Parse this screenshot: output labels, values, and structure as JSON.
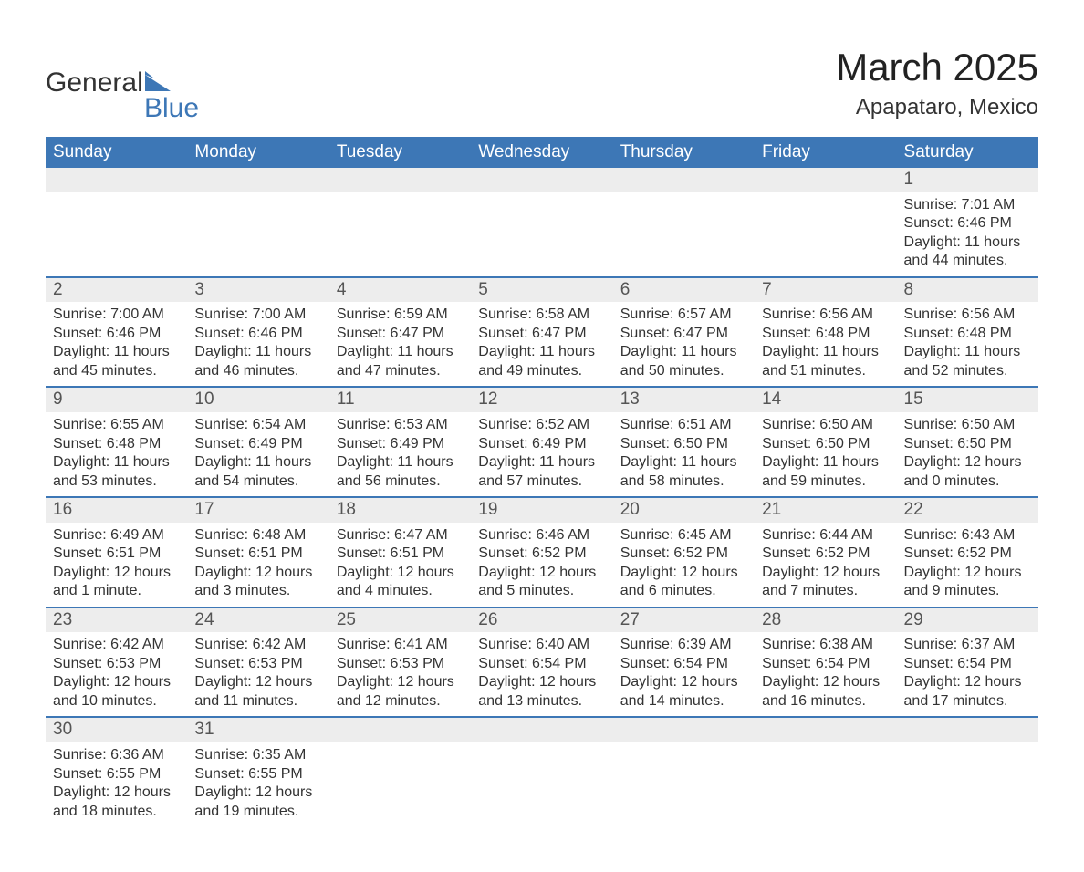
{
  "brand": {
    "name_part1": "General",
    "name_part2": "Blue",
    "text_color": "#333333",
    "accent_color": "#3d77b6"
  },
  "header": {
    "month_title": "March 2025",
    "location": "Apapataro, Mexico"
  },
  "calendar": {
    "header_bg": "#3d77b6",
    "header_text_color": "#ffffff",
    "row_divider_color": "#3d77b6",
    "daynum_bg": "#ededed",
    "daynum_color": "#555555",
    "body_text_color": "#333333",
    "font_size_header": 19,
    "font_size_body": 16,
    "weekdays": [
      "Sunday",
      "Monday",
      "Tuesday",
      "Wednesday",
      "Thursday",
      "Friday",
      "Saturday"
    ],
    "weeks": [
      [
        {
          "day": "",
          "sunrise": "",
          "sunset": "",
          "daylight": ""
        },
        {
          "day": "",
          "sunrise": "",
          "sunset": "",
          "daylight": ""
        },
        {
          "day": "",
          "sunrise": "",
          "sunset": "",
          "daylight": ""
        },
        {
          "day": "",
          "sunrise": "",
          "sunset": "",
          "daylight": ""
        },
        {
          "day": "",
          "sunrise": "",
          "sunset": "",
          "daylight": ""
        },
        {
          "day": "",
          "sunrise": "",
          "sunset": "",
          "daylight": ""
        },
        {
          "day": "1",
          "sunrise": "Sunrise: 7:01 AM",
          "sunset": "Sunset: 6:46 PM",
          "daylight": "Daylight: 11 hours and 44 minutes."
        }
      ],
      [
        {
          "day": "2",
          "sunrise": "Sunrise: 7:00 AM",
          "sunset": "Sunset: 6:46 PM",
          "daylight": "Daylight: 11 hours and 45 minutes."
        },
        {
          "day": "3",
          "sunrise": "Sunrise: 7:00 AM",
          "sunset": "Sunset: 6:46 PM",
          "daylight": "Daylight: 11 hours and 46 minutes."
        },
        {
          "day": "4",
          "sunrise": "Sunrise: 6:59 AM",
          "sunset": "Sunset: 6:47 PM",
          "daylight": "Daylight: 11 hours and 47 minutes."
        },
        {
          "day": "5",
          "sunrise": "Sunrise: 6:58 AM",
          "sunset": "Sunset: 6:47 PM",
          "daylight": "Daylight: 11 hours and 49 minutes."
        },
        {
          "day": "6",
          "sunrise": "Sunrise: 6:57 AM",
          "sunset": "Sunset: 6:47 PM",
          "daylight": "Daylight: 11 hours and 50 minutes."
        },
        {
          "day": "7",
          "sunrise": "Sunrise: 6:56 AM",
          "sunset": "Sunset: 6:48 PM",
          "daylight": "Daylight: 11 hours and 51 minutes."
        },
        {
          "day": "8",
          "sunrise": "Sunrise: 6:56 AM",
          "sunset": "Sunset: 6:48 PM",
          "daylight": "Daylight: 11 hours and 52 minutes."
        }
      ],
      [
        {
          "day": "9",
          "sunrise": "Sunrise: 6:55 AM",
          "sunset": "Sunset: 6:48 PM",
          "daylight": "Daylight: 11 hours and 53 minutes."
        },
        {
          "day": "10",
          "sunrise": "Sunrise: 6:54 AM",
          "sunset": "Sunset: 6:49 PM",
          "daylight": "Daylight: 11 hours and 54 minutes."
        },
        {
          "day": "11",
          "sunrise": "Sunrise: 6:53 AM",
          "sunset": "Sunset: 6:49 PM",
          "daylight": "Daylight: 11 hours and 56 minutes."
        },
        {
          "day": "12",
          "sunrise": "Sunrise: 6:52 AM",
          "sunset": "Sunset: 6:49 PM",
          "daylight": "Daylight: 11 hours and 57 minutes."
        },
        {
          "day": "13",
          "sunrise": "Sunrise: 6:51 AM",
          "sunset": "Sunset: 6:50 PM",
          "daylight": "Daylight: 11 hours and 58 minutes."
        },
        {
          "day": "14",
          "sunrise": "Sunrise: 6:50 AM",
          "sunset": "Sunset: 6:50 PM",
          "daylight": "Daylight: 11 hours and 59 minutes."
        },
        {
          "day": "15",
          "sunrise": "Sunrise: 6:50 AM",
          "sunset": "Sunset: 6:50 PM",
          "daylight": "Daylight: 12 hours and 0 minutes."
        }
      ],
      [
        {
          "day": "16",
          "sunrise": "Sunrise: 6:49 AM",
          "sunset": "Sunset: 6:51 PM",
          "daylight": "Daylight: 12 hours and 1 minute."
        },
        {
          "day": "17",
          "sunrise": "Sunrise: 6:48 AM",
          "sunset": "Sunset: 6:51 PM",
          "daylight": "Daylight: 12 hours and 3 minutes."
        },
        {
          "day": "18",
          "sunrise": "Sunrise: 6:47 AM",
          "sunset": "Sunset: 6:51 PM",
          "daylight": "Daylight: 12 hours and 4 minutes."
        },
        {
          "day": "19",
          "sunrise": "Sunrise: 6:46 AM",
          "sunset": "Sunset: 6:52 PM",
          "daylight": "Daylight: 12 hours and 5 minutes."
        },
        {
          "day": "20",
          "sunrise": "Sunrise: 6:45 AM",
          "sunset": "Sunset: 6:52 PM",
          "daylight": "Daylight: 12 hours and 6 minutes."
        },
        {
          "day": "21",
          "sunrise": "Sunrise: 6:44 AM",
          "sunset": "Sunset: 6:52 PM",
          "daylight": "Daylight: 12 hours and 7 minutes."
        },
        {
          "day": "22",
          "sunrise": "Sunrise: 6:43 AM",
          "sunset": "Sunset: 6:52 PM",
          "daylight": "Daylight: 12 hours and 9 minutes."
        }
      ],
      [
        {
          "day": "23",
          "sunrise": "Sunrise: 6:42 AM",
          "sunset": "Sunset: 6:53 PM",
          "daylight": "Daylight: 12 hours and 10 minutes."
        },
        {
          "day": "24",
          "sunrise": "Sunrise: 6:42 AM",
          "sunset": "Sunset: 6:53 PM",
          "daylight": "Daylight: 12 hours and 11 minutes."
        },
        {
          "day": "25",
          "sunrise": "Sunrise: 6:41 AM",
          "sunset": "Sunset: 6:53 PM",
          "daylight": "Daylight: 12 hours and 12 minutes."
        },
        {
          "day": "26",
          "sunrise": "Sunrise: 6:40 AM",
          "sunset": "Sunset: 6:54 PM",
          "daylight": "Daylight: 12 hours and 13 minutes."
        },
        {
          "day": "27",
          "sunrise": "Sunrise: 6:39 AM",
          "sunset": "Sunset: 6:54 PM",
          "daylight": "Daylight: 12 hours and 14 minutes."
        },
        {
          "day": "28",
          "sunrise": "Sunrise: 6:38 AM",
          "sunset": "Sunset: 6:54 PM",
          "daylight": "Daylight: 12 hours and 16 minutes."
        },
        {
          "day": "29",
          "sunrise": "Sunrise: 6:37 AM",
          "sunset": "Sunset: 6:54 PM",
          "daylight": "Daylight: 12 hours and 17 minutes."
        }
      ],
      [
        {
          "day": "30",
          "sunrise": "Sunrise: 6:36 AM",
          "sunset": "Sunset: 6:55 PM",
          "daylight": "Daylight: 12 hours and 18 minutes."
        },
        {
          "day": "31",
          "sunrise": "Sunrise: 6:35 AM",
          "sunset": "Sunset: 6:55 PM",
          "daylight": "Daylight: 12 hours and 19 minutes."
        },
        {
          "day": "",
          "sunrise": "",
          "sunset": "",
          "daylight": ""
        },
        {
          "day": "",
          "sunrise": "",
          "sunset": "",
          "daylight": ""
        },
        {
          "day": "",
          "sunrise": "",
          "sunset": "",
          "daylight": ""
        },
        {
          "day": "",
          "sunrise": "",
          "sunset": "",
          "daylight": ""
        },
        {
          "day": "",
          "sunrise": "",
          "sunset": "",
          "daylight": ""
        }
      ]
    ]
  }
}
